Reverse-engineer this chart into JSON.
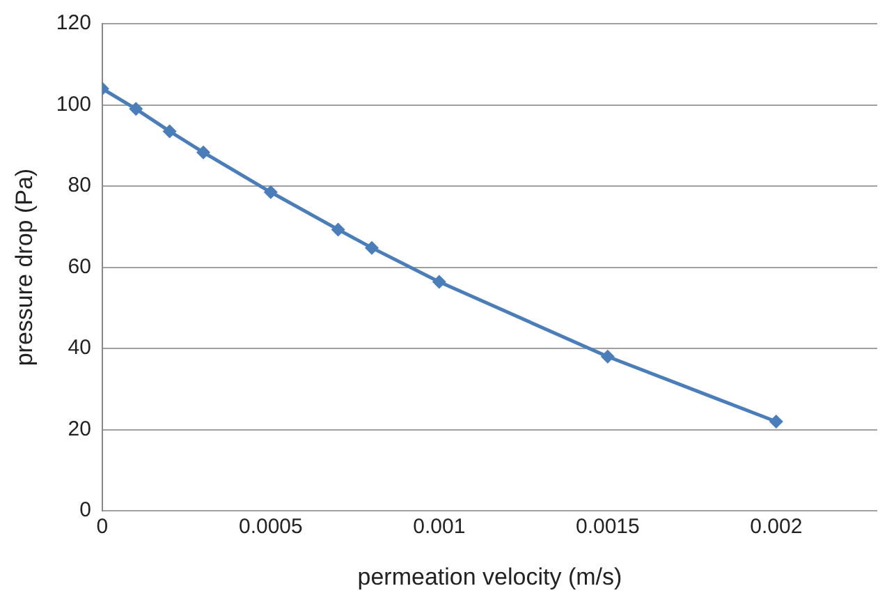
{
  "chart_data": {
    "type": "line",
    "xlabel": "permeation velocity (m/s)",
    "ylabel": "pressure drop (Pa)",
    "x": [
      0,
      0.0001,
      0.0002,
      0.0003,
      0.0005,
      0.0007,
      0.0008,
      0.001,
      0.0015,
      0.002
    ],
    "series": [
      {
        "color": "#4a7ebb",
        "values": [
          104,
          99,
          93.5,
          88.3,
          78.5,
          69.3,
          64.8,
          56.4,
          38,
          22
        ]
      }
    ],
    "xlim": [
      0,
      0.0023
    ],
    "xticks": [
      0,
      0.0005,
      0.001,
      0.0015,
      0.002
    ],
    "ylim": [
      0,
      120
    ],
    "yticks": [
      0,
      20,
      40,
      60,
      80,
      100,
      120
    ],
    "grid": "y",
    "legend": false,
    "marker": "diamond",
    "line_style": "solid"
  }
}
